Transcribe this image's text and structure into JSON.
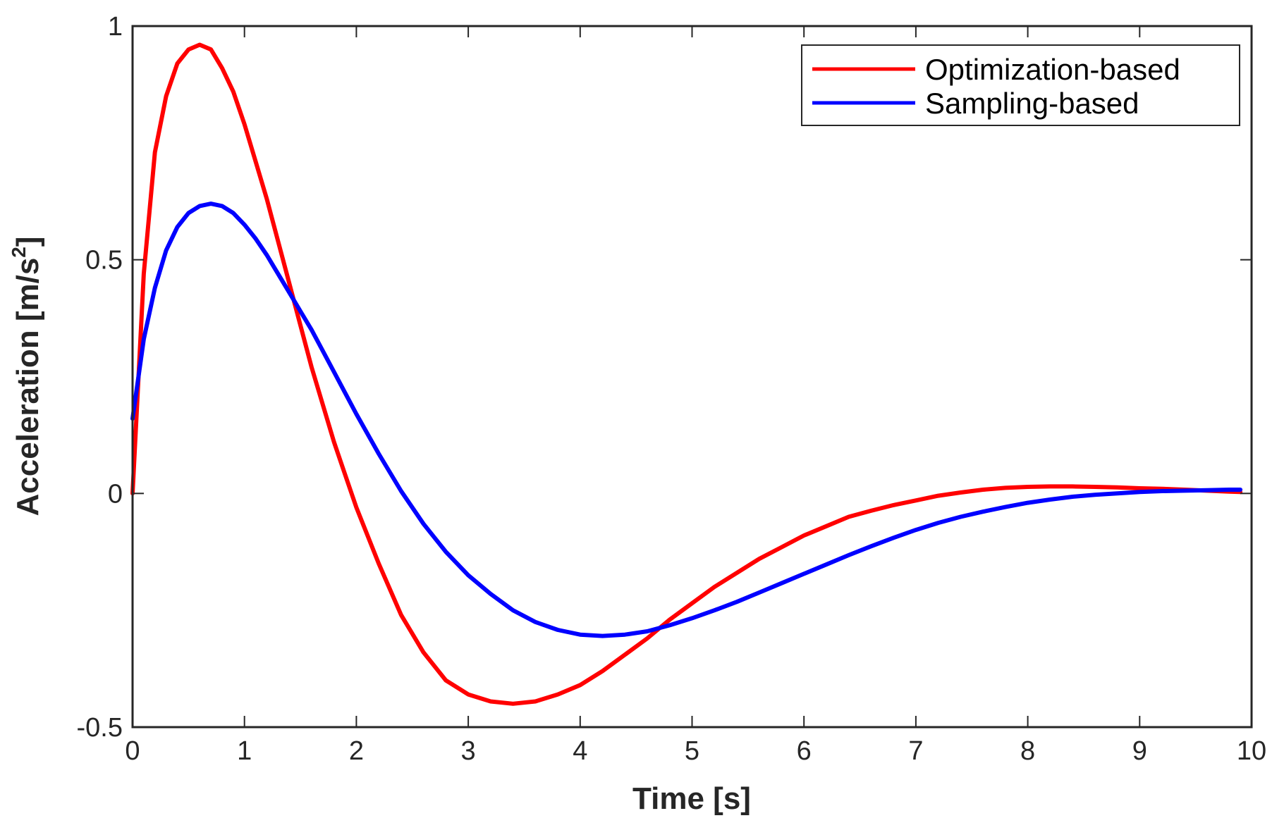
{
  "chart_data": {
    "type": "line",
    "title": "",
    "xlabel": "Time [s]",
    "ylabel_main": "Acceleration [m/s",
    "ylabel_sup": "2",
    "ylabel_close": "]",
    "xlim": [
      0,
      10
    ],
    "ylim": [
      -0.5,
      1
    ],
    "xticks": [
      0,
      1,
      2,
      3,
      4,
      5,
      6,
      7,
      8,
      9,
      10
    ],
    "xtick_labels": [
      "0",
      "1",
      "2",
      "3",
      "4",
      "5",
      "6",
      "7",
      "8",
      "9",
      "10"
    ],
    "yticks": [
      -0.5,
      0,
      0.5,
      1
    ],
    "ytick_labels": [
      "-0.5",
      "0",
      "0.5",
      "1"
    ],
    "grid": false,
    "legend_position": "top-right",
    "series": [
      {
        "name": "Optimization-based",
        "color": "#ff0000",
        "x": [
          0,
          0.1,
          0.2,
          0.3,
          0.4,
          0.5,
          0.6,
          0.7,
          0.8,
          0.9,
          1.0,
          1.1,
          1.2,
          1.3,
          1.4,
          1.5,
          1.6,
          1.7,
          1.8,
          1.9,
          2.0,
          2.2,
          2.4,
          2.6,
          2.8,
          3.0,
          3.2,
          3.4,
          3.6,
          3.8,
          4.0,
          4.2,
          4.4,
          4.6,
          4.8,
          5.0,
          5.2,
          5.4,
          5.6,
          5.8,
          6.0,
          6.2,
          6.4,
          6.6,
          6.8,
          7.0,
          7.2,
          7.4,
          7.6,
          7.8,
          8.0,
          8.2,
          8.4,
          8.6,
          8.8,
          9.0,
          9.2,
          9.4,
          9.6,
          9.8,
          9.9
        ],
        "y": [
          0.0,
          0.47,
          0.73,
          0.85,
          0.92,
          0.95,
          0.96,
          0.95,
          0.91,
          0.86,
          0.79,
          0.71,
          0.63,
          0.54,
          0.45,
          0.36,
          0.27,
          0.19,
          0.11,
          0.04,
          -0.03,
          -0.15,
          -0.26,
          -0.34,
          -0.4,
          -0.43,
          -0.445,
          -0.45,
          -0.445,
          -0.43,
          -0.41,
          -0.38,
          -0.345,
          -0.31,
          -0.27,
          -0.235,
          -0.2,
          -0.17,
          -0.14,
          -0.115,
          -0.09,
          -0.07,
          -0.05,
          -0.037,
          -0.025,
          -0.015,
          -0.005,
          0.002,
          0.008,
          0.012,
          0.014,
          0.015,
          0.015,
          0.014,
          0.013,
          0.011,
          0.01,
          0.008,
          0.006,
          0.004,
          0.003
        ]
      },
      {
        "name": "Sampling-based",
        "color": "#0000ff",
        "x": [
          0,
          0.1,
          0.2,
          0.3,
          0.4,
          0.5,
          0.6,
          0.7,
          0.8,
          0.9,
          1.0,
          1.1,
          1.2,
          1.3,
          1.4,
          1.5,
          1.6,
          1.7,
          1.8,
          1.9,
          2.0,
          2.2,
          2.4,
          2.6,
          2.8,
          3.0,
          3.2,
          3.4,
          3.6,
          3.8,
          4.0,
          4.2,
          4.4,
          4.6,
          4.8,
          5.0,
          5.2,
          5.4,
          5.6,
          5.8,
          6.0,
          6.2,
          6.4,
          6.6,
          6.8,
          7.0,
          7.2,
          7.4,
          7.6,
          7.8,
          8.0,
          8.2,
          8.4,
          8.6,
          8.8,
          9.0,
          9.2,
          9.4,
          9.6,
          9.8,
          9.9
        ],
        "y": [
          0.16,
          0.33,
          0.44,
          0.52,
          0.57,
          0.6,
          0.615,
          0.62,
          0.615,
          0.6,
          0.575,
          0.545,
          0.51,
          0.47,
          0.43,
          0.39,
          0.35,
          0.305,
          0.26,
          0.215,
          0.17,
          0.085,
          0.005,
          -0.065,
          -0.125,
          -0.175,
          -0.215,
          -0.25,
          -0.275,
          -0.292,
          -0.302,
          -0.305,
          -0.302,
          -0.295,
          -0.282,
          -0.267,
          -0.25,
          -0.232,
          -0.212,
          -0.192,
          -0.172,
          -0.152,
          -0.132,
          -0.113,
          -0.095,
          -0.078,
          -0.063,
          -0.05,
          -0.039,
          -0.029,
          -0.02,
          -0.013,
          -0.007,
          -0.003,
          0.0,
          0.003,
          0.005,
          0.006,
          0.007,
          0.008,
          0.008
        ]
      }
    ]
  }
}
